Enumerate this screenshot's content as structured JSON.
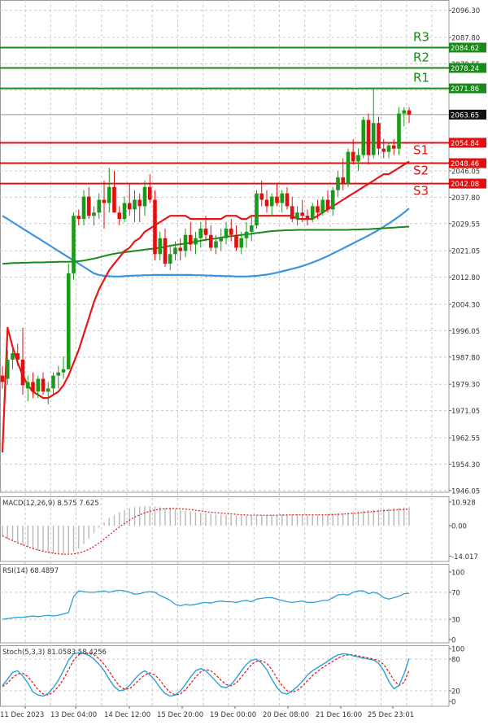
{
  "chart_data": {
    "type": "candlestick",
    "instrument_note": "",
    "main": {
      "y_ticks": [
        "2096.30",
        "2087.80",
        "2079.55",
        "2071.30",
        "2063.65",
        "2054.80",
        "2046.05",
        "2037.80",
        "2029.55",
        "2021.05",
        "2012.80",
        "2004.30",
        "1996.05",
        "1987.80",
        "1979.30",
        "1971.05",
        "1962.55",
        "1954.30",
        "1946.05"
      ],
      "y_tick_values": [
        2096.3,
        2087.8,
        2079.55,
        2071.3,
        2063.65,
        2054.8,
        2046.05,
        2037.8,
        2029.55,
        2021.05,
        2012.8,
        2004.3,
        1996.05,
        1987.8,
        1979.3,
        1971.05,
        1962.55,
        1954.3,
        1946.05
      ],
      "ylim": [
        1945.5,
        2099.5
      ],
      "price_label": "2063.65",
      "price_value": 2063.65,
      "levels": [
        {
          "name": "R3",
          "value": 2084.62,
          "label": "2084.62",
          "color": "#1a8a1a"
        },
        {
          "name": "R2",
          "value": 2078.24,
          "label": "2078.24",
          "color": "#1a8a1a"
        },
        {
          "name": "R1",
          "value": 2071.86,
          "label": "2071.86",
          "color": "#1a8a1a"
        },
        {
          "name": "S1",
          "value": 2054.84,
          "label": "2054.84",
          "color": "#e01010"
        },
        {
          "name": "S2",
          "value": 2048.46,
          "label": "2048.46",
          "color": "#e01010"
        },
        {
          "name": "S3",
          "value": 2042.08,
          "label": "2042.08",
          "color": "#e01010"
        }
      ],
      "candles": [
        [
          1982,
          1985,
          1978,
          1980
        ],
        [
          1981,
          1990,
          1979,
          1987
        ],
        [
          1987,
          1991,
          1984,
          1989
        ],
        [
          1989,
          1992,
          1985,
          1987
        ],
        [
          1987,
          1997,
          1976,
          1979
        ],
        [
          1978,
          1982,
          1974,
          1980
        ],
        [
          1980,
          1983,
          1975,
          1977
        ],
        [
          1977,
          1982,
          1975,
          1981
        ],
        [
          1981,
          1983,
          1976,
          1977
        ],
        [
          1977,
          1980,
          1973,
          1978
        ],
        [
          1978,
          1983,
          1976,
          1982
        ],
        [
          1982,
          1985,
          1978,
          1983
        ],
        [
          1983,
          1988,
          1981,
          1984
        ],
        [
          1984,
          2017,
          1984,
          2014
        ],
        [
          2014,
          2033,
          2012,
          2032
        ],
        [
          2032,
          2034,
          2029,
          2031
        ],
        [
          2031,
          2040,
          2029,
          2038
        ],
        [
          2038,
          2041,
          2031,
          2032
        ],
        [
          2032,
          2035,
          2029,
          2033
        ],
        [
          2033,
          2039,
          2031,
          2037
        ],
        [
          2037,
          2043,
          2028,
          2036
        ],
        [
          2036,
          2047,
          2033,
          2041
        ],
        [
          2041,
          2046,
          2033,
          2033
        ],
        [
          2033,
          2035,
          2029,
          2031
        ],
        [
          2031,
          2038,
          2030,
          2036
        ],
        [
          2036,
          2042,
          2032,
          2034
        ],
        [
          2034,
          2040,
          2030,
          2037
        ],
        [
          2037,
          2039,
          2030,
          2035
        ],
        [
          2035,
          2043,
          2032,
          2041
        ],
        [
          2041,
          2045,
          2036,
          2037
        ],
        [
          2037,
          2040,
          2018,
          2020
        ],
        [
          2020,
          2027,
          2018,
          2025
        ],
        [
          2025,
          2028,
          2016,
          2017
        ],
        [
          2017,
          2023,
          2015,
          2020
        ],
        [
          2020,
          2024,
          2018,
          2022
        ],
        [
          2022,
          2025,
          2018,
          2021
        ],
        [
          2021,
          2028,
          2019,
          2026
        ],
        [
          2026,
          2030,
          2021,
          2023
        ],
        [
          2023,
          2027,
          2020,
          2025
        ],
        [
          2025,
          2030,
          2022,
          2028
        ],
        [
          2028,
          2032,
          2024,
          2026
        ],
        [
          2026,
          2029,
          2021,
          2022
        ],
        [
          2022,
          2026,
          2020,
          2024
        ],
        [
          2024,
          2028,
          2021,
          2025
        ],
        [
          2025,
          2030,
          2023,
          2028
        ],
        [
          2028,
          2031,
          2024,
          2026
        ],
        [
          2026,
          2029,
          2021,
          2022
        ],
        [
          2022,
          2027,
          2020,
          2025
        ],
        [
          2025,
          2030,
          2022,
          2027
        ],
        [
          2027,
          2032,
          2024,
          2029
        ],
        [
          2029,
          2040,
          2028,
          2039
        ],
        [
          2039,
          2043,
          2035,
          2037
        ],
        [
          2037,
          2040,
          2033,
          2035
        ],
        [
          2035,
          2039,
          2032,
          2038
        ],
        [
          2038,
          2042,
          2035,
          2036
        ],
        [
          2036,
          2040,
          2033,
          2039
        ],
        [
          2039,
          2041,
          2034,
          2035
        ],
        [
          2035,
          2038,
          2030,
          2031
        ],
        [
          2031,
          2035,
          2029,
          2033
        ],
        [
          2033,
          2037,
          2030,
          2032
        ],
        [
          2032,
          2034,
          2029,
          2031
        ],
        [
          2031,
          2036,
          2030,
          2035
        ],
        [
          2035,
          2037,
          2031,
          2033
        ],
        [
          2033,
          2038,
          2032,
          2037
        ],
        [
          2037,
          2040,
          2033,
          2034
        ],
        [
          2034,
          2041,
          2032,
          2040
        ],
        [
          2040,
          2046,
          2038,
          2044
        ],
        [
          2044,
          2050,
          2040,
          2042
        ],
        [
          2042,
          2053,
          2041,
          2052
        ],
        [
          2052,
          2056,
          2048,
          2049
        ],
        [
          2049,
          2053,
          2046,
          2051
        ],
        [
          2051,
          2063,
          2050,
          2062
        ],
        [
          2062,
          2064,
          2048,
          2051
        ],
        [
          2051,
          2072,
          2050,
          2061
        ],
        [
          2061,
          2063,
          2051,
          2053
        ],
        [
          2053,
          2056,
          2050,
          2052
        ],
        [
          2052,
          2055,
          2050,
          2054
        ],
        [
          2054,
          2056,
          2051,
          2053
        ],
        [
          2053,
          2066,
          2051,
          2064
        ],
        [
          2064,
          2066,
          2060,
          2065
        ],
        [
          2065,
          2066,
          2061,
          2063.65
        ]
      ],
      "ma_red": [
        1958,
        1997,
        1991,
        1986,
        1982,
        1979,
        1977,
        1976,
        1975,
        1975,
        1976,
        1977,
        1979,
        1982,
        1986,
        1990,
        1995,
        2000,
        2005,
        2009,
        2012,
        2015,
        2017,
        2019,
        2021,
        2022,
        2024,
        2025,
        2027,
        2028,
        2029,
        2030,
        2031,
        2032,
        2032,
        2032,
        2032,
        2031,
        2031,
        2031,
        2031,
        2031,
        2031,
        2031,
        2032,
        2032,
        2032,
        2031,
        2031,
        2032,
        2032,
        2032,
        2032,
        2032,
        2032,
        2032,
        2032,
        2032,
        2031,
        2031,
        2031,
        2031,
        2032,
        2033,
        2034,
        2035,
        2036,
        2037,
        2038,
        2039,
        2040,
        2041,
        2042,
        2043,
        2044,
        2045,
        2045,
        2046,
        2047,
        2048,
        2049
      ],
      "ma_green": [
        2017.0,
        2017.1,
        2017.2,
        2017.2,
        2017.3,
        2017.3,
        2017.4,
        2017.4,
        2017.4,
        2017.5,
        2017.5,
        2017.6,
        2017.6,
        2017.6,
        2017.7,
        2017.8,
        2018.0,
        2018.3,
        2018.6,
        2019.0,
        2019.4,
        2019.8,
        2020.1,
        2020.4,
        2020.6,
        2020.8,
        2021.0,
        2021.2,
        2021.4,
        2021.6,
        2021.8,
        2022.0,
        2022.3,
        2022.6,
        2022.9,
        2023.1,
        2023.3,
        2023.6,
        2023.9,
        2024.2,
        2024.5,
        2024.7,
        2024.9,
        2025.2,
        2025.4,
        2025.6,
        2025.8,
        2026.0,
        2026.2,
        2026.4,
        2026.6,
        2026.8,
        2027.0,
        2027.2,
        2027.3,
        2027.4,
        2027.5,
        2027.5,
        2027.6,
        2027.6,
        2027.6,
        2027.6,
        2027.6,
        2027.6,
        2027.6,
        2027.6,
        2027.6,
        2027.6,
        2027.6,
        2027.7,
        2027.7,
        2027.8,
        2027.8,
        2027.9,
        2028.0,
        2028.1,
        2028.2,
        2028.3,
        2028.4,
        2028.5,
        2028.6
      ],
      "ma_blue": [
        2032,
        2031,
        2030,
        2029,
        2028,
        2027,
        2026,
        2025,
        2024,
        2023,
        2022,
        2021,
        2020,
        2019,
        2018,
        2017,
        2016,
        2015,
        2014,
        2013.5,
        2013.2,
        2013.1,
        2013.0,
        2013.0,
        2013.1,
        2013.2,
        2013.3,
        2013.3,
        2013.4,
        2013.4,
        2013.5,
        2013.5,
        2013.5,
        2013.5,
        2013.5,
        2013.5,
        2013.5,
        2013.5,
        2013.4,
        2013.4,
        2013.3,
        2013.3,
        2013.2,
        2013.2,
        2013.1,
        2013.1,
        2013.0,
        2013.0,
        2013.0,
        2013.1,
        2013.2,
        2013.4,
        2013.6,
        2013.9,
        2014.2,
        2014.6,
        2015.0,
        2015.4,
        2015.8,
        2016.3,
        2016.8,
        2017.4,
        2018.0,
        2018.7,
        2019.4,
        2020.2,
        2021.0,
        2021.8,
        2022.6,
        2023.4,
        2024.2,
        2025.0,
        2025.8,
        2026.7,
        2027.6,
        2028.6,
        2029.6,
        2030.7,
        2031.8,
        2033.0,
        2034.3
      ]
    },
    "macd": {
      "label": "MACD(12,26,9) 8.575 7.625",
      "y_ticks": [
        "10.928",
        "0.00",
        "-14.017"
      ],
      "y_tick_values": [
        10.928,
        0,
        -14.017
      ],
      "ylim": [
        -16.5,
        13.5
      ],
      "histogram": [
        -4.7,
        -6.0,
        -7.0,
        -8.0,
        -9.0,
        -10.0,
        -11.0,
        -11.5,
        -12.0,
        -12.5,
        -12.8,
        -13.0,
        -13.2,
        -12.8,
        -12.0,
        -10.5,
        -8.5,
        -6.0,
        -3.5,
        -1.0,
        1.5,
        3.5,
        5.0,
        6.2,
        7.2,
        8.0,
        8.5,
        8.8,
        9.0,
        9.0,
        8.8,
        8.5,
        8.2,
        8.0,
        7.6,
        7.2,
        6.8,
        6.5,
        6.2,
        5.9,
        5.6,
        5.4,
        5.2,
        5.0,
        4.9,
        4.8,
        4.7,
        4.6,
        4.6,
        4.6,
        4.7,
        4.8,
        4.9,
        5.0,
        5.0,
        5.1,
        5.2,
        5.3,
        5.3,
        5.2,
        5.1,
        5.1,
        5.1,
        5.2,
        5.3,
        5.4,
        5.6,
        5.8,
        6.0,
        6.3,
        6.6,
        6.9,
        7.1,
        7.3,
        7.5,
        7.7,
        7.9,
        8.1,
        8.3,
        8.4,
        8.575
      ],
      "signal": [
        -4.7,
        -5.8,
        -6.9,
        -7.9,
        -8.8,
        -9.7,
        -10.5,
        -11.2,
        -11.8,
        -12.3,
        -12.7,
        -13.0,
        -13.2,
        -13.2,
        -13.0,
        -12.6,
        -11.9,
        -10.9,
        -9.6,
        -8.0,
        -6.2,
        -4.3,
        -2.4,
        -0.6,
        1.1,
        2.6,
        3.9,
        5.0,
        5.9,
        6.6,
        7.2,
        7.6,
        7.8,
        7.9,
        7.9,
        7.8,
        7.6,
        7.4,
        7.1,
        6.8,
        6.5,
        6.2,
        6.0,
        5.8,
        5.6,
        5.4,
        5.2,
        5.0,
        4.9,
        4.8,
        4.8,
        4.8,
        4.8,
        4.8,
        4.8,
        4.9,
        4.9,
        5.0,
        5.0,
        5.0,
        5.0,
        5.0,
        5.0,
        5.0,
        5.0,
        5.1,
        5.2,
        5.3,
        5.5,
        5.7,
        5.9,
        6.1,
        6.3,
        6.5,
        6.7,
        6.9,
        7.0,
        7.2,
        7.4,
        7.5,
        7.625
      ]
    },
    "rsi": {
      "label": "RSI(14) 68.4897",
      "y_ticks": [
        "100",
        "70",
        "30",
        "0"
      ],
      "y_tick_values": [
        100,
        70,
        30,
        0
      ],
      "ylim": [
        0,
        100
      ],
      "values": [
        30,
        31,
        32,
        33,
        33,
        34,
        35,
        34,
        35,
        36,
        35,
        36,
        38,
        40,
        64,
        72,
        71,
        70,
        70,
        71,
        72,
        70,
        72,
        73,
        72,
        70,
        67,
        68,
        70,
        71,
        70,
        65,
        62,
        58,
        52,
        50,
        52,
        51,
        52,
        54,
        55,
        54,
        56,
        57,
        56,
        56,
        55,
        57,
        58,
        56,
        60,
        61,
        62,
        62,
        60,
        58,
        56,
        55,
        56,
        57,
        55,
        55,
        56,
        58,
        58,
        62,
        66,
        67,
        66,
        70,
        72,
        72,
        68,
        70,
        68,
        62,
        60,
        62,
        64,
        68,
        68.49
      ]
    },
    "stoch": {
      "label": "Stoch(5,3,3) 81.0583 58.4256",
      "y_ticks": [
        "100",
        "80",
        "20",
        "0"
      ],
      "y_tick_values": [
        100,
        80,
        20,
        0
      ],
      "ylim": [
        0,
        100
      ],
      "k": [
        30,
        42,
        55,
        58,
        48,
        35,
        18,
        12,
        10,
        15,
        26,
        40,
        58,
        78,
        90,
        92,
        91,
        87,
        80,
        70,
        58,
        42,
        28,
        20,
        22,
        30,
        42,
        52,
        58,
        50,
        40,
        26,
        15,
        10,
        12,
        20,
        32,
        46,
        58,
        62,
        58,
        48,
        38,
        28,
        26,
        32,
        44,
        58,
        70,
        78,
        80,
        72,
        60,
        42,
        26,
        16,
        14,
        20,
        28,
        38,
        50,
        58,
        64,
        70,
        76,
        83,
        88,
        90,
        89,
        86,
        84,
        82,
        80,
        78,
        72,
        58,
        38,
        24,
        30,
        52,
        81.06
      ],
      "d": [
        28,
        35,
        45,
        52,
        53,
        47,
        35,
        22,
        14,
        12,
        18,
        28,
        42,
        60,
        78,
        88,
        92,
        91,
        88,
        81,
        70,
        57,
        42,
        29,
        23,
        24,
        32,
        42,
        50,
        54,
        50,
        40,
        27,
        17,
        12,
        14,
        22,
        34,
        46,
        56,
        60,
        58,
        50,
        40,
        32,
        29,
        35,
        46,
        58,
        70,
        76,
        77,
        72,
        60,
        44,
        30,
        20,
        17,
        21,
        29,
        39,
        49,
        57,
        64,
        70,
        76,
        82,
        86,
        88,
        88,
        86,
        84,
        82,
        80,
        77,
        70,
        56,
        40,
        30,
        36,
        58.43
      ]
    },
    "x_labels": [
      "11 Dec 2023",
      "13 Dec 04:00",
      "14 Dec 12:00",
      "15 Dec 20:00",
      "19 Dec 00:00",
      "20 Dec 08:00",
      "21 Dec 16:00",
      "25 Dec 23:01"
    ],
    "colors": {
      "bull": "#1a9a1a",
      "bear": "#e01010",
      "ma_red": "#e81515",
      "ma_green": "#1a8a1a",
      "ma_blue": "#3b94e0",
      "support": "#e01010",
      "resistance": "#1a8a1a",
      "grid": "#c8c8c8",
      "text": "#333333"
    }
  }
}
